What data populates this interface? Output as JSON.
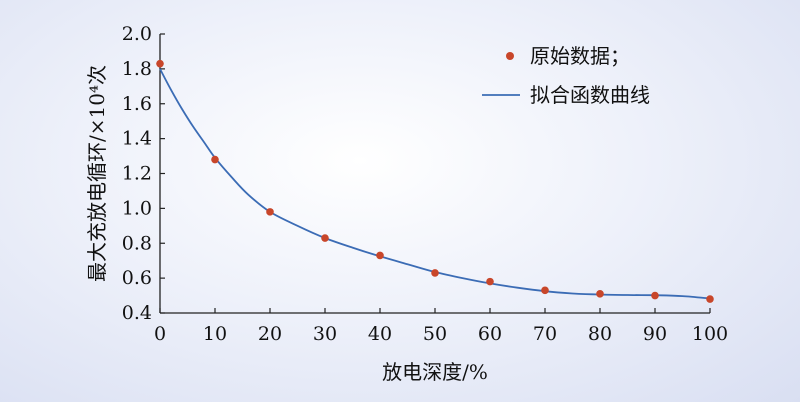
{
  "chart_data": {
    "type": "scatter",
    "xlabel": "放电深度/%",
    "ylabel": "最大充放电循环/×10⁴次",
    "xlim": [
      0,
      100
    ],
    "ylim": [
      0.4,
      2.0
    ],
    "x_ticks": [
      0,
      10,
      20,
      30,
      40,
      50,
      60,
      70,
      80,
      90,
      100
    ],
    "y_ticks": [
      0.4,
      0.6,
      0.8,
      1.0,
      1.2,
      1.4,
      1.6,
      1.8,
      2.0
    ],
    "y_tick_labels": [
      "0.4",
      "0.6",
      "0.8",
      "1.0",
      "1.2",
      "1.4",
      "1.6",
      "1.8",
      "2.0"
    ],
    "legend_position": "top-right",
    "series": [
      {
        "name": "原始数据；",
        "kind": "scatter",
        "color": "#c8462a",
        "x": [
          0,
          10,
          20,
          30,
          40,
          50,
          60,
          70,
          80,
          90,
          100
        ],
        "y": [
          1.83,
          1.28,
          0.98,
          0.83,
          0.73,
          0.63,
          0.58,
          0.53,
          0.51,
          0.5,
          0.48
        ]
      },
      {
        "name": "拟合函数曲线",
        "kind": "line",
        "color": "#3b6cb5",
        "x": [
          0,
          2,
          4,
          6,
          8,
          10,
          13,
          16,
          20,
          25,
          30,
          35,
          40,
          45,
          50,
          55,
          60,
          65,
          70,
          75,
          80,
          85,
          90,
          95,
          100
        ],
        "y": [
          1.8,
          1.68,
          1.57,
          1.47,
          1.38,
          1.29,
          1.18,
          1.08,
          0.98,
          0.9,
          0.83,
          0.775,
          0.725,
          0.68,
          0.635,
          0.6,
          0.57,
          0.545,
          0.525,
          0.512,
          0.506,
          0.503,
          0.502,
          0.497,
          0.483
        ]
      }
    ]
  }
}
